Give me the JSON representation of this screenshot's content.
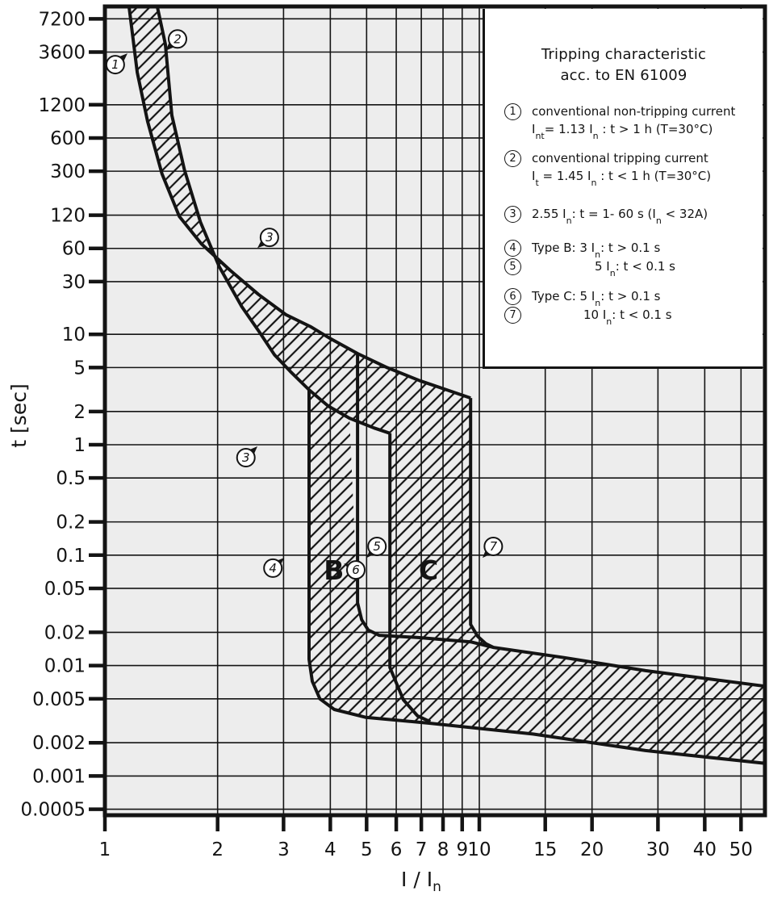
{
  "legend": {
    "title_line1": "Tripping characteristic",
    "title_line2": "acc. to EN 61009",
    "items": [
      {
        "num": "1",
        "lines": [
          [
            [
              "conventional non-tripping current",
              0
            ]
          ],
          [
            [
              "I",
              0
            ],
            [
              "nt",
              1
            ],
            [
              "= 1.13 I",
              0
            ],
            [
              "n",
              1
            ],
            [
              " : t > 1 h   (T=30°C)",
              0
            ]
          ]
        ]
      },
      {
        "num": "2",
        "lines": [
          [
            [
              "conventional tripping current",
              0
            ]
          ],
          [
            [
              "I",
              0
            ],
            [
              "t",
              1
            ],
            [
              " = 1.45 I",
              0
            ],
            [
              "n",
              1
            ],
            [
              " : t < 1 h   (T=30°C)",
              0
            ]
          ]
        ]
      },
      {
        "num": "3",
        "lines": [
          [
            [
              "2.55 I",
              0
            ],
            [
              "n",
              1
            ],
            [
              ": t = 1- 60 s (I",
              0
            ],
            [
              "n",
              1
            ],
            [
              " < 32A)",
              0
            ]
          ]
        ]
      },
      {
        "num": "4",
        "lines": [
          [
            [
              "Type B: 3 I",
              0
            ],
            [
              "n",
              1
            ],
            [
              ": t > 0.1 s",
              0
            ]
          ]
        ]
      },
      {
        "num": "5",
        "lines": [
          [
            [
              "5 I",
              0
            ],
            [
              "n",
              1
            ],
            [
              ": t < 0.1 s",
              0
            ]
          ]
        ]
      },
      {
        "num": "6",
        "lines": [
          [
            [
              "Type C: 5 I",
              0
            ],
            [
              "n",
              1
            ],
            [
              ": t > 0.1 s",
              0
            ]
          ]
        ]
      },
      {
        "num": "7",
        "lines": [
          [
            [
              "10 I",
              0
            ],
            [
              "n",
              1
            ],
            [
              ": t < 0.1 s",
              0
            ]
          ]
        ]
      }
    ]
  },
  "chart_data": {
    "type": "area",
    "title": "Tripping characteristic acc. to EN 61009",
    "x_axis": {
      "label_main": "I / I",
      "label_sub": "n",
      "scale": "log",
      "range": [
        1,
        58
      ],
      "ticks": [
        1,
        2,
        3,
        4,
        5,
        6,
        7,
        8,
        9,
        10,
        15,
        20,
        30,
        40,
        50
      ]
    },
    "y_axis": {
      "label": "t [sec]",
      "scale": "log",
      "range": [
        0.0005,
        9300
      ],
      "ticks": [
        7200,
        3600,
        1200,
        600,
        300,
        120,
        60,
        30,
        10,
        5,
        2,
        1,
        0.5,
        0.2,
        0.1,
        0.05,
        0.02,
        0.01,
        0.005,
        0.002,
        0.001,
        0.0005
      ]
    },
    "grid": true,
    "curves": {
      "curve_1_nontrip": [
        [
          1.16,
          9300
        ],
        [
          1.22,
          2350
        ],
        [
          1.3,
          850
        ],
        [
          1.42,
          285
        ],
        [
          1.58,
          117
        ],
        [
          1.81,
          66
        ],
        [
          2.16,
          38
        ],
        [
          2.57,
          23
        ],
        [
          3.05,
          15
        ],
        [
          3.55,
          11.7
        ],
        [
          4.01,
          9.1
        ],
        [
          4.73,
          6.7
        ],
        [
          5.67,
          5.0
        ],
        [
          6.94,
          3.8
        ],
        [
          8.05,
          3.2
        ],
        [
          9.48,
          2.65
        ]
      ],
      "curve_2_trip": [
        [
          1.38,
          9300
        ],
        [
          1.45,
          4250
        ],
        [
          1.51,
          960
        ],
        [
          1.63,
          310
        ],
        [
          1.8,
          104
        ],
        [
          2.02,
          41
        ],
        [
          2.32,
          17.8
        ],
        [
          2.59,
          10.4
        ],
        [
          2.84,
          6.5
        ],
        [
          3.13,
          4.6
        ],
        [
          3.51,
          3.14
        ],
        [
          3.95,
          2.24
        ],
        [
          4.5,
          1.74
        ],
        [
          5.23,
          1.42
        ],
        [
          5.77,
          1.27
        ]
      ],
      "b_lower_limit": [
        [
          3.51,
          3.14
        ],
        [
          3.51,
          0.0114
        ],
        [
          3.58,
          0.0072
        ],
        [
          3.75,
          0.005
        ],
        [
          4.1,
          0.004
        ],
        [
          4.97,
          0.0034
        ],
        [
          7.4,
          0.003
        ],
        [
          13.9,
          0.0024
        ],
        [
          27.8,
          0.0017
        ],
        [
          58,
          0.0013
        ]
      ],
      "b_upper_limit": [
        [
          4.73,
          6.7
        ],
        [
          4.73,
          0.037
        ],
        [
          4.85,
          0.026
        ],
        [
          5.05,
          0.021
        ],
        [
          5.4,
          0.0188
        ],
        [
          6.93,
          0.0179
        ],
        [
          9.48,
          0.0164
        ],
        [
          10.9,
          0.0146
        ],
        [
          16.9,
          0.0118
        ],
        [
          27.8,
          0.009
        ],
        [
          58,
          0.0065
        ]
      ],
      "c_lower_limit": [
        [
          5.77,
          1.27
        ],
        [
          5.77,
          0.0096
        ],
        [
          6.27,
          0.0049
        ],
        [
          6.84,
          0.0035
        ],
        [
          7.4,
          0.0031
        ]
      ],
      "c_upper_limit": [
        [
          9.48,
          2.65
        ],
        [
          9.48,
          0.0236
        ],
        [
          9.9,
          0.0184
        ],
        [
          10.4,
          0.0158
        ],
        [
          10.9,
          0.0146
        ]
      ],
      "channel_outline": [
        [
          4.5,
          1.74
        ],
        [
          5.23,
          1.42
        ],
        [
          5.77,
          1.27
        ],
        [
          5.77,
          0.0181
        ],
        [
          5.4,
          0.0188
        ],
        [
          5.05,
          0.021
        ],
        [
          4.85,
          0.026
        ],
        [
          4.73,
          0.037
        ]
      ]
    },
    "markers": [
      {
        "label": "1",
        "circle": [
          1.066,
          2770
        ],
        "tip": [
          1.149,
          3500
        ]
      },
      {
        "label": "2",
        "circle": [
          1.563,
          4730
        ],
        "tip": [
          1.451,
          3700
        ]
      },
      {
        "label": "3",
        "circle": [
          2.75,
          75.5
        ],
        "tip": [
          2.555,
          60.5
        ]
      },
      {
        "label": "3",
        "circle": [
          2.38,
          0.764
        ],
        "tip": [
          2.555,
          0.967
        ]
      },
      {
        "label": "4",
        "circle": [
          2.81,
          0.0763
        ],
        "tip": [
          3.01,
          0.0945
        ]
      },
      {
        "label": "5",
        "circle": [
          5.33,
          0.12
        ],
        "tip": [
          5.0,
          0.0945
        ]
      },
      {
        "label": "6",
        "circle": [
          4.68,
          0.0735
        ],
        "tip": [
          4.35,
          0.084
        ]
      },
      {
        "label": "7",
        "circle": [
          10.9,
          0.12
        ],
        "tip": [
          10.2,
          0.0945
        ]
      }
    ],
    "region_labels": [
      {
        "text": "B",
        "pos": [
          4.09,
          0.06
        ]
      },
      {
        "text": "C",
        "pos": [
          7.32,
          0.06
        ]
      }
    ],
    "colors": {
      "ink": "#141414",
      "plot_bg": "#EDEDED",
      "band_fill": "none",
      "legend_bg": "#ffffff"
    }
  }
}
